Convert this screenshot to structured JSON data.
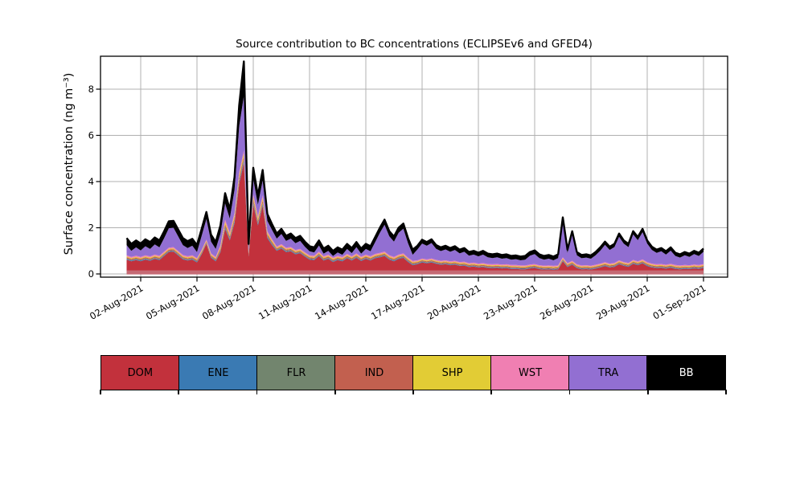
{
  "figure": {
    "title": "Source contribution to BC concentrations (ECLIPSEv6 and GFED4)",
    "ylabel": "Surface concentration (ng m⁻³)"
  },
  "legend": {
    "items": [
      {
        "label": "DOM",
        "color": "#c2313c",
        "text_color": "#000000"
      },
      {
        "label": "ENE",
        "color": "#3a7ab3",
        "text_color": "#000000"
      },
      {
        "label": "FLR",
        "color": "#72856e",
        "text_color": "#000000"
      },
      {
        "label": "IND",
        "color": "#c2604f",
        "text_color": "#000000"
      },
      {
        "label": "SHP",
        "color": "#e2cc35",
        "text_color": "#000000"
      },
      {
        "label": "WST",
        "color": "#f07fb2",
        "text_color": "#000000"
      },
      {
        "label": "TRA",
        "color": "#926fd2",
        "text_color": "#000000"
      },
      {
        "label": "BB",
        "color": "#000000",
        "text_color": "#ffffff"
      }
    ]
  },
  "chart_data": {
    "type": "area",
    "stacked": true,
    "title": "Source contribution to BC concentrations (ECLIPSEv6 and GFED4)",
    "xlabel": "",
    "ylabel": "Surface concentration (ng m⁻³)",
    "grid": true,
    "grid_color": "#b0b0b0",
    "legend_position": "bottom-row",
    "y_ticks": [
      0,
      2,
      4,
      6,
      8
    ],
    "ylim": [
      -0.15,
      9.43
    ],
    "x_tick_days": [
      2,
      5,
      8,
      11,
      14,
      17,
      20,
      23,
      26,
      29,
      32
    ],
    "x_tick_labels": [
      "02-Aug-2021",
      "05-Aug-2021",
      "08-Aug-2021",
      "11-Aug-2021",
      "14-Aug-2021",
      "17-Aug-2021",
      "20-Aug-2021",
      "23-Aug-2021",
      "26-Aug-2021",
      "29-Aug-2021",
      "01-Sep-2021"
    ],
    "xlim_days": [
      -0.14,
      33.29
    ],
    "x_start_day": 1.25,
    "x_step_days": 0.25,
    "x_unit": "day of August 2021 (32 = 01-Sep-2021), 6-hourly estimates",
    "total_line_color": "#000000",
    "baseline_band_color": "#c56a74",
    "series": [
      {
        "name": "DOM",
        "color": "#c2313c",
        "values": [
          0.62,
          0.55,
          0.6,
          0.55,
          0.62,
          0.57,
          0.65,
          0.6,
          0.78,
          0.95,
          0.97,
          0.8,
          0.63,
          0.58,
          0.62,
          0.5,
          0.85,
          1.3,
          0.7,
          0.55,
          0.95,
          1.95,
          1.45,
          2.2,
          3.9,
          4.8,
          0.75,
          3.0,
          2.1,
          2.95,
          1.55,
          1.25,
          1.0,
          1.1,
          0.95,
          0.98,
          0.85,
          0.9,
          0.75,
          0.62,
          0.6,
          0.78,
          0.58,
          0.65,
          0.52,
          0.6,
          0.55,
          0.68,
          0.58,
          0.7,
          0.56,
          0.65,
          0.58,
          0.68,
          0.72,
          0.78,
          0.62,
          0.55,
          0.65,
          0.7,
          0.52,
          0.38,
          0.42,
          0.5,
          0.46,
          0.5,
          0.44,
          0.4,
          0.42,
          0.38,
          0.4,
          0.35,
          0.36,
          0.3,
          0.32,
          0.28,
          0.3,
          0.26,
          0.25,
          0.26,
          0.24,
          0.25,
          0.22,
          0.22,
          0.2,
          0.2,
          0.24,
          0.26,
          0.21,
          0.19,
          0.2,
          0.18,
          0.2,
          0.55,
          0.3,
          0.4,
          0.25,
          0.2,
          0.21,
          0.19,
          0.23,
          0.28,
          0.34,
          0.28,
          0.31,
          0.42,
          0.35,
          0.31,
          0.44,
          0.38,
          0.46,
          0.34,
          0.28,
          0.25,
          0.26,
          0.23,
          0.27,
          0.22,
          0.2,
          0.22,
          0.21,
          0.24,
          0.22,
          0.26
        ]
      },
      {
        "name": "ENE",
        "color": "#3a7ab3",
        "values": [
          0.03,
          0.03,
          0.03,
          0.03,
          0.03,
          0.03,
          0.03,
          0.03,
          0.03,
          0.03,
          0.03,
          0.03,
          0.03,
          0.03,
          0.03,
          0.03,
          0.03,
          0.03,
          0.03,
          0.03,
          0.04,
          0.06,
          0.05,
          0.07,
          0.08,
          0.09,
          0.03,
          0.07,
          0.06,
          0.07,
          0.05,
          0.04,
          0.03,
          0.03,
          0.03,
          0.03,
          0.03,
          0.03,
          0.03,
          0.03,
          0.03,
          0.03,
          0.03,
          0.03,
          0.03,
          0.03,
          0.03,
          0.03,
          0.03,
          0.03,
          0.03,
          0.03,
          0.03,
          0.03,
          0.03,
          0.03,
          0.03,
          0.03,
          0.03,
          0.03,
          0.03,
          0.03,
          0.027,
          0.027,
          0.027,
          0.027,
          0.027,
          0.027,
          0.027,
          0.027,
          0.027,
          0.027,
          0.027,
          0.027,
          0.027,
          0.027,
          0.027,
          0.027,
          0.027,
          0.027,
          0.027,
          0.027,
          0.027,
          0.027,
          0.027,
          0.027,
          0.027,
          0.027,
          0.027,
          0.027,
          0.027,
          0.027,
          0.027,
          0.027,
          0.027,
          0.027,
          0.027,
          0.027,
          0.027,
          0.027,
          0.027,
          0.027,
          0.027,
          0.027,
          0.027,
          0.027,
          0.027,
          0.027,
          0.027,
          0.027,
          0.027,
          0.027,
          0.027,
          0.027,
          0.027,
          0.027,
          0.027,
          0.027,
          0.027,
          0.027,
          0.027,
          0.027,
          0.027,
          0.027
        ]
      },
      {
        "name": "FLR",
        "color": "#72856e",
        "values": [
          0.02,
          0.02,
          0.02,
          0.02,
          0.02,
          0.02,
          0.02,
          0.02,
          0.02,
          0.02,
          0.02,
          0.02,
          0.02,
          0.02,
          0.02,
          0.02,
          0.02,
          0.02,
          0.02,
          0.02,
          0.03,
          0.04,
          0.035,
          0.05,
          0.05,
          0.06,
          0.02,
          0.05,
          0.04,
          0.05,
          0.03,
          0.03,
          0.02,
          0.02,
          0.02,
          0.02,
          0.02,
          0.02,
          0.02,
          0.02,
          0.02,
          0.02,
          0.02,
          0.02,
          0.02,
          0.02,
          0.02,
          0.02,
          0.02,
          0.02,
          0.02,
          0.02,
          0.02,
          0.02,
          0.02,
          0.02,
          0.02,
          0.02,
          0.02,
          0.02,
          0.02,
          0.02,
          0.018,
          0.018,
          0.018,
          0.018,
          0.018,
          0.018,
          0.018,
          0.018,
          0.018,
          0.018,
          0.018,
          0.018,
          0.018,
          0.018,
          0.018,
          0.018,
          0.018,
          0.018,
          0.018,
          0.018,
          0.018,
          0.018,
          0.018,
          0.018,
          0.018,
          0.018,
          0.018,
          0.018,
          0.018,
          0.018,
          0.018,
          0.018,
          0.018,
          0.018,
          0.018,
          0.018,
          0.018,
          0.018,
          0.018,
          0.018,
          0.018,
          0.018,
          0.018,
          0.018,
          0.018,
          0.018,
          0.018,
          0.018,
          0.018,
          0.018,
          0.018,
          0.018,
          0.018,
          0.018,
          0.018,
          0.018,
          0.018,
          0.018,
          0.018,
          0.018,
          0.018,
          0.018
        ]
      },
      {
        "name": "IND",
        "color": "#c2604f",
        "values": [
          0.05,
          0.05,
          0.05,
          0.05,
          0.05,
          0.05,
          0.05,
          0.05,
          0.05,
          0.05,
          0.05,
          0.05,
          0.05,
          0.05,
          0.05,
          0.05,
          0.05,
          0.05,
          0.05,
          0.05,
          0.08,
          0.1,
          0.09,
          0.12,
          0.13,
          0.14,
          0.05,
          0.12,
          0.1,
          0.12,
          0.08,
          0.07,
          0.05,
          0.05,
          0.05,
          0.05,
          0.05,
          0.05,
          0.05,
          0.05,
          0.05,
          0.05,
          0.05,
          0.05,
          0.05,
          0.05,
          0.05,
          0.05,
          0.05,
          0.05,
          0.05,
          0.05,
          0.05,
          0.05,
          0.05,
          0.05,
          0.05,
          0.05,
          0.05,
          0.05,
          0.05,
          0.05,
          0.045,
          0.045,
          0.045,
          0.045,
          0.045,
          0.045,
          0.045,
          0.045,
          0.045,
          0.045,
          0.045,
          0.045,
          0.045,
          0.045,
          0.045,
          0.045,
          0.045,
          0.045,
          0.045,
          0.045,
          0.045,
          0.045,
          0.045,
          0.045,
          0.045,
          0.045,
          0.045,
          0.045,
          0.045,
          0.045,
          0.045,
          0.045,
          0.045,
          0.045,
          0.045,
          0.045,
          0.045,
          0.045,
          0.045,
          0.045,
          0.045,
          0.045,
          0.045,
          0.045,
          0.045,
          0.045,
          0.045,
          0.045,
          0.045,
          0.045,
          0.045,
          0.045,
          0.045,
          0.045,
          0.045,
          0.045,
          0.045,
          0.045,
          0.045,
          0.045,
          0.045,
          0.045
        ]
      },
      {
        "name": "SHP",
        "color": "#e2cc35",
        "values": [
          0.04,
          0.04,
          0.04,
          0.04,
          0.04,
          0.04,
          0.04,
          0.04,
          0.04,
          0.04,
          0.04,
          0.04,
          0.04,
          0.04,
          0.04,
          0.04,
          0.04,
          0.04,
          0.04,
          0.04,
          0.07,
          0.1,
          0.08,
          0.11,
          0.12,
          0.14,
          0.04,
          0.11,
          0.1,
          0.11,
          0.07,
          0.06,
          0.04,
          0.04,
          0.04,
          0.04,
          0.04,
          0.04,
          0.04,
          0.04,
          0.04,
          0.04,
          0.04,
          0.04,
          0.04,
          0.04,
          0.04,
          0.04,
          0.04,
          0.04,
          0.04,
          0.04,
          0.04,
          0.04,
          0.04,
          0.04,
          0.04,
          0.04,
          0.04,
          0.04,
          0.04,
          0.04,
          0.036,
          0.036,
          0.036,
          0.036,
          0.036,
          0.036,
          0.036,
          0.036,
          0.036,
          0.036,
          0.036,
          0.036,
          0.036,
          0.036,
          0.036,
          0.036,
          0.036,
          0.036,
          0.036,
          0.036,
          0.036,
          0.036,
          0.036,
          0.036,
          0.036,
          0.036,
          0.036,
          0.036,
          0.036,
          0.036,
          0.036,
          0.036,
          0.036,
          0.036,
          0.036,
          0.036,
          0.036,
          0.036,
          0.036,
          0.036,
          0.036,
          0.036,
          0.036,
          0.036,
          0.036,
          0.036,
          0.036,
          0.036,
          0.036,
          0.036,
          0.036,
          0.036,
          0.036,
          0.036,
          0.036,
          0.036,
          0.036,
          0.036,
          0.036,
          0.036,
          0.036,
          0.036
        ]
      },
      {
        "name": "WST",
        "color": "#f07fb2",
        "values": [
          0.05,
          0.05,
          0.05,
          0.05,
          0.05,
          0.05,
          0.05,
          0.05,
          0.05,
          0.05,
          0.05,
          0.05,
          0.05,
          0.05,
          0.05,
          0.05,
          0.05,
          0.05,
          0.05,
          0.05,
          0.08,
          0.1,
          0.095,
          0.1,
          0.12,
          0.12,
          0.06,
          0.1,
          0.1,
          0.1,
          0.07,
          0.06,
          0.05,
          0.05,
          0.05,
          0.05,
          0.05,
          0.05,
          0.05,
          0.05,
          0.05,
          0.05,
          0.05,
          0.05,
          0.05,
          0.05,
          0.05,
          0.05,
          0.05,
          0.05,
          0.05,
          0.05,
          0.05,
          0.05,
          0.05,
          0.05,
          0.05,
          0.05,
          0.05,
          0.05,
          0.05,
          0.05,
          0.044,
          0.044,
          0.044,
          0.044,
          0.044,
          0.044,
          0.044,
          0.044,
          0.044,
          0.044,
          0.044,
          0.044,
          0.044,
          0.044,
          0.044,
          0.044,
          0.044,
          0.044,
          0.044,
          0.044,
          0.044,
          0.044,
          0.044,
          0.044,
          0.044,
          0.044,
          0.044,
          0.044,
          0.044,
          0.044,
          0.044,
          0.044,
          0.044,
          0.044,
          0.044,
          0.044,
          0.044,
          0.044,
          0.044,
          0.044,
          0.044,
          0.044,
          0.044,
          0.044,
          0.044,
          0.044,
          0.044,
          0.044,
          0.044,
          0.044,
          0.044,
          0.044,
          0.044,
          0.044,
          0.044,
          0.044,
          0.044,
          0.044,
          0.044,
          0.044,
          0.044,
          0.044
        ]
      },
      {
        "name": "TRA",
        "color": "#926fd2",
        "values": [
          0.44,
          0.26,
          0.36,
          0.28,
          0.39,
          0.32,
          0.44,
          0.36,
          0.58,
          0.84,
          0.84,
          0.63,
          0.43,
          0.35,
          0.41,
          0.26,
          0.61,
          0.89,
          0.51,
          0.34,
          0.5,
          0.7,
          0.6,
          1.0,
          2.0,
          2.35,
          0.2,
          0.65,
          0.5,
          0.65,
          0.45,
          0.4,
          0.34,
          0.44,
          0.29,
          0.36,
          0.29,
          0.34,
          0.24,
          0.17,
          0.14,
          0.26,
          0.11,
          0.16,
          0.07,
          0.14,
          0.09,
          0.21,
          0.13,
          0.27,
          0.13,
          0.24,
          0.21,
          0.51,
          0.87,
          1.16,
          0.82,
          0.66,
          0.94,
          1.07,
          0.62,
          0.26,
          0.47,
          0.65,
          0.59,
          0.67,
          0.48,
          0.42,
          0.47,
          0.41,
          0.47,
          0.37,
          0.43,
          0.32,
          0.35,
          0.31,
          0.37,
          0.29,
          0.27,
          0.29,
          0.25,
          0.27,
          0.23,
          0.25,
          0.22,
          0.25,
          0.38,
          0.43,
          0.31,
          0.26,
          0.29,
          0.24,
          0.32,
          1.59,
          0.44,
          1.14,
          0.39,
          0.31,
          0.33,
          0.3,
          0.41,
          0.56,
          0.75,
          0.59,
          0.68,
          1.02,
          0.79,
          0.68,
          1.1,
          0.91,
          1.18,
          0.8,
          0.59,
          0.49,
          0.55,
          0.44,
          0.57,
          0.39,
          0.34,
          0.42,
          0.36,
          0.45,
          0.39,
          0.53
        ]
      },
      {
        "name": "BB",
        "color": "#000000",
        "values": [
          0.3,
          0.3,
          0.3,
          0.3,
          0.3,
          0.3,
          0.3,
          0.3,
          0.3,
          0.3,
          0.3,
          0.3,
          0.3,
          0.3,
          0.3,
          0.3,
          0.3,
          0.3,
          0.3,
          0.3,
          0.35,
          0.45,
          0.4,
          0.55,
          0.9,
          1.5,
          0.15,
          0.5,
          0.4,
          0.45,
          0.3,
          0.25,
          0.22,
          0.22,
          0.22,
          0.22,
          0.22,
          0.22,
          0.22,
          0.22,
          0.22,
          0.22,
          0.22,
          0.22,
          0.22,
          0.22,
          0.22,
          0.22,
          0.22,
          0.22,
          0.22,
          0.22,
          0.22,
          0.22,
          0.22,
          0.22,
          0.22,
          0.22,
          0.22,
          0.22,
          0.22,
          0.22,
          0.16,
          0.16,
          0.16,
          0.16,
          0.16,
          0.16,
          0.16,
          0.16,
          0.16,
          0.16,
          0.16,
          0.16,
          0.16,
          0.16,
          0.16,
          0.16,
          0.16,
          0.16,
          0.16,
          0.16,
          0.16,
          0.16,
          0.16,
          0.16,
          0.16,
          0.16,
          0.16,
          0.16,
          0.16,
          0.16,
          0.16,
          0.14,
          0.14,
          0.14,
          0.14,
          0.14,
          0.14,
          0.14,
          0.14,
          0.14,
          0.14,
          0.14,
          0.14,
          0.14,
          0.14,
          0.14,
          0.14,
          0.14,
          0.14,
          0.14,
          0.14,
          0.14,
          0.14,
          0.14,
          0.14,
          0.14,
          0.14,
          0.14,
          0.14,
          0.14,
          0.14,
          0.14
        ]
      }
    ]
  }
}
